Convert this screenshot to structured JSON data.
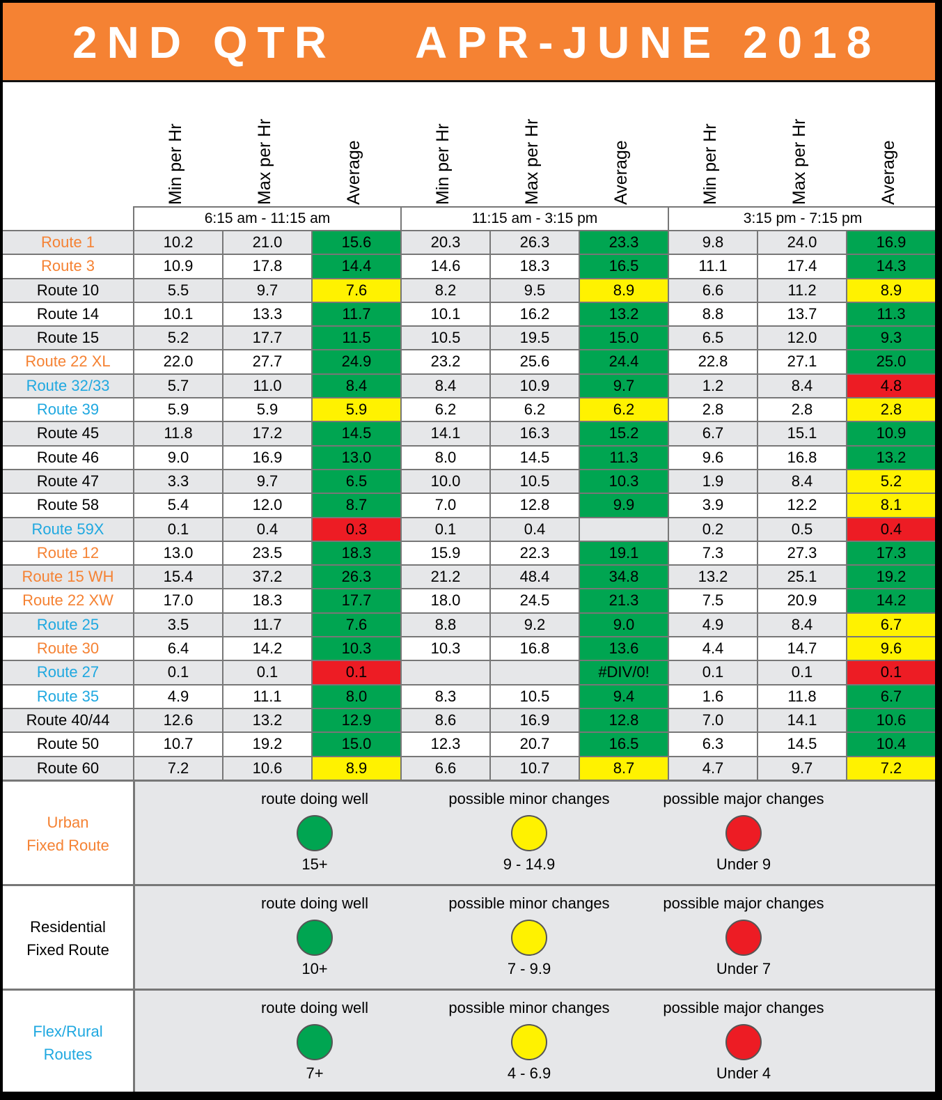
{
  "header": {
    "left": "2ND QTR",
    "right": "APR-JUNE 2018"
  },
  "column_headers": [
    "Min per Hr",
    "Max per Hr",
    "Average",
    "Min per Hr",
    "Max per Hr",
    "Average",
    "Min per Hr",
    "Max per Hr",
    "Average"
  ],
  "time_periods": [
    "6:15 am - 11:15 am",
    "11:15 am - 3:15 pm",
    "3:15 pm - 7:15 pm"
  ],
  "colors": {
    "orange": "#f58233",
    "blue": "#1fa8e0",
    "black": "#000000",
    "green": "#00a551",
    "yellow": "#fff200",
    "red": "#ed1c24"
  },
  "rows": [
    {
      "route": "Route 1",
      "type": "orange",
      "values": [
        "10.2",
        "21.0",
        "15.6",
        "20.3",
        "26.3",
        "23.3",
        "9.8",
        "24.0",
        "16.9"
      ],
      "status": [
        "green",
        "green",
        "green"
      ]
    },
    {
      "route": "Route 3",
      "type": "orange",
      "values": [
        "10.9",
        "17.8",
        "14.4",
        "14.6",
        "18.3",
        "16.5",
        "11.1",
        "17.4",
        "14.3"
      ],
      "status": [
        "green",
        "green",
        "green"
      ]
    },
    {
      "route": "Route 10",
      "type": "black",
      "values": [
        "5.5",
        "9.7",
        "7.6",
        "8.2",
        "9.5",
        "8.9",
        "6.6",
        "11.2",
        "8.9"
      ],
      "status": [
        "yellow",
        "yellow",
        "yellow"
      ]
    },
    {
      "route": "Route 14",
      "type": "black",
      "values": [
        "10.1",
        "13.3",
        "11.7",
        "10.1",
        "16.2",
        "13.2",
        "8.8",
        "13.7",
        "11.3"
      ],
      "status": [
        "green",
        "green",
        "green"
      ]
    },
    {
      "route": "Route 15",
      "type": "black",
      "values": [
        "5.2",
        "17.7",
        "11.5",
        "10.5",
        "19.5",
        "15.0",
        "6.5",
        "12.0",
        "9.3"
      ],
      "status": [
        "green",
        "green",
        "green"
      ]
    },
    {
      "route": "Route 22 XL",
      "type": "orange",
      "values": [
        "22.0",
        "27.7",
        "24.9",
        "23.2",
        "25.6",
        "24.4",
        "22.8",
        "27.1",
        "25.0"
      ],
      "status": [
        "green",
        "green",
        "green"
      ]
    },
    {
      "route": "Route 32/33",
      "type": "blue",
      "values": [
        "5.7",
        "11.0",
        "8.4",
        "8.4",
        "10.9",
        "9.7",
        "1.2",
        "8.4",
        "4.8"
      ],
      "status": [
        "green",
        "green",
        "red"
      ]
    },
    {
      "route": "Route 39",
      "type": "blue",
      "values": [
        "5.9",
        "5.9",
        "5.9",
        "6.2",
        "6.2",
        "6.2",
        "2.8",
        "2.8",
        "2.8"
      ],
      "status": [
        "yellow",
        "yellow",
        "yellow"
      ]
    },
    {
      "route": "Route 45",
      "type": "black",
      "values": [
        "11.8",
        "17.2",
        "14.5",
        "14.1",
        "16.3",
        "15.2",
        "6.7",
        "15.1",
        "10.9"
      ],
      "status": [
        "green",
        "green",
        "green"
      ]
    },
    {
      "route": "Route 46",
      "type": "black",
      "values": [
        "9.0",
        "16.9",
        "13.0",
        "8.0",
        "14.5",
        "11.3",
        "9.6",
        "16.8",
        "13.2"
      ],
      "status": [
        "green",
        "green",
        "green"
      ]
    },
    {
      "route": "Route 47",
      "type": "black",
      "values": [
        "3.3",
        "9.7",
        "6.5",
        "10.0",
        "10.5",
        "10.3",
        "1.9",
        "8.4",
        "5.2"
      ],
      "status": [
        "green",
        "green",
        "yellow"
      ]
    },
    {
      "route": "Route 58",
      "type": "black",
      "values": [
        "5.4",
        "12.0",
        "8.7",
        "7.0",
        "12.8",
        "9.9",
        "3.9",
        "12.2",
        "8.1"
      ],
      "status": [
        "green",
        "green",
        "yellow"
      ]
    },
    {
      "route": "Route 59X",
      "type": "blue",
      "values": [
        "0.1",
        "0.4",
        "0.3",
        "0.1",
        "0.4",
        "",
        "0.2",
        "0.5",
        "0.4"
      ],
      "status": [
        "red",
        "none",
        "red"
      ]
    },
    {
      "route": "Route 12",
      "type": "orange",
      "values": [
        "13.0",
        "23.5",
        "18.3",
        "15.9",
        "22.3",
        "19.1",
        "7.3",
        "27.3",
        "17.3"
      ],
      "status": [
        "green",
        "green",
        "green"
      ]
    },
    {
      "route": "Route 15 WH",
      "type": "orange",
      "values": [
        "15.4",
        "37.2",
        "26.3",
        "21.2",
        "48.4",
        "34.8",
        "13.2",
        "25.1",
        "19.2"
      ],
      "status": [
        "green",
        "green",
        "green"
      ]
    },
    {
      "route": "Route 22 XW",
      "type": "orange",
      "values": [
        "17.0",
        "18.3",
        "17.7",
        "18.0",
        "24.5",
        "21.3",
        "7.5",
        "20.9",
        "14.2"
      ],
      "status": [
        "green",
        "green",
        "green"
      ]
    },
    {
      "route": "Route 25",
      "type": "blue",
      "values": [
        "3.5",
        "11.7",
        "7.6",
        "8.8",
        "9.2",
        "9.0",
        "4.9",
        "8.4",
        "6.7"
      ],
      "status": [
        "green",
        "green",
        "yellow"
      ]
    },
    {
      "route": "Route 30",
      "type": "orange",
      "values": [
        "6.4",
        "14.2",
        "10.3",
        "10.3",
        "16.8",
        "13.6",
        "4.4",
        "14.7",
        "9.6"
      ],
      "status": [
        "green",
        "green",
        "yellow"
      ]
    },
    {
      "route": "Route 27",
      "type": "blue",
      "values": [
        "0.1",
        "0.1",
        "0.1",
        "",
        "",
        "#DIV/0!",
        "0.1",
        "0.1",
        "0.1"
      ],
      "status": [
        "red",
        "green",
        "red"
      ]
    },
    {
      "route": "Route 35",
      "type": "blue",
      "values": [
        "4.9",
        "11.1",
        "8.0",
        "8.3",
        "10.5",
        "9.4",
        "1.6",
        "11.8",
        "6.7"
      ],
      "status": [
        "green",
        "green",
        "green"
      ]
    },
    {
      "route": "Route 40/44",
      "type": "black",
      "values": [
        "12.6",
        "13.2",
        "12.9",
        "8.6",
        "16.9",
        "12.8",
        "7.0",
        "14.1",
        "10.6"
      ],
      "status": [
        "green",
        "green",
        "green"
      ]
    },
    {
      "route": "Route 50",
      "type": "black",
      "values": [
        "10.7",
        "19.2",
        "15.0",
        "12.3",
        "20.7",
        "16.5",
        "6.3",
        "14.5",
        "10.4"
      ],
      "status": [
        "green",
        "green",
        "green"
      ]
    },
    {
      "route": "Route 60",
      "type": "black",
      "values": [
        "7.2",
        "10.6",
        "8.9",
        "6.6",
        "10.7",
        "8.7",
        "4.7",
        "9.7",
        "7.2"
      ],
      "status": [
        "yellow",
        "yellow",
        "yellow"
      ]
    }
  ],
  "legend": [
    {
      "label": "Urban\nFixed Route",
      "type": "orange",
      "items": [
        {
          "text": "route doing well",
          "value": "15+",
          "color": "green"
        },
        {
          "text": "possible minor changes",
          "value": "9 - 14.9",
          "color": "yellow"
        },
        {
          "text": "possible major changes",
          "value": "Under 9",
          "color": "red"
        }
      ]
    },
    {
      "label": "Residential\nFixed Route",
      "type": "black",
      "items": [
        {
          "text": "route doing well",
          "value": "10+",
          "color": "green"
        },
        {
          "text": "possible minor changes",
          "value": "7 - 9.9",
          "color": "yellow"
        },
        {
          "text": "possible major changes",
          "value": "Under 7",
          "color": "red"
        }
      ]
    },
    {
      "label": "Flex/Rural\nRoutes",
      "type": "blue",
      "items": [
        {
          "text": "route doing well",
          "value": "7+",
          "color": "green"
        },
        {
          "text": "possible minor changes",
          "value": "4 - 6.9",
          "color": "yellow"
        },
        {
          "text": "possible major changes",
          "value": "Under 4",
          "color": "red"
        }
      ]
    }
  ]
}
